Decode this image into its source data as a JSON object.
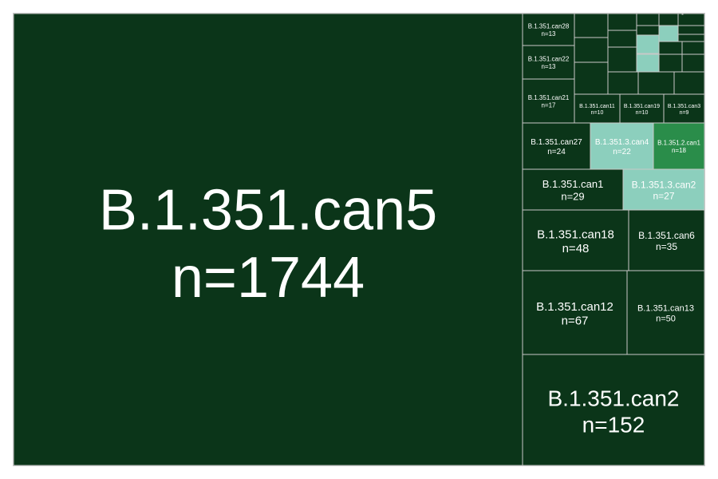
{
  "chart_data": {
    "type": "treemap",
    "colors": {
      "dark": "#0b3519",
      "mid": "#2a8d4a",
      "light": "#8ccfbd",
      "border": "#c8c8c8"
    },
    "tiles": [
      {
        "name": "B.1.351.can5",
        "n": 1744,
        "color": "dark"
      },
      {
        "name": "B.1.351.can2",
        "n": 152,
        "color": "dark"
      },
      {
        "name": "B.1.351.can12",
        "n": 67,
        "color": "dark"
      },
      {
        "name": "B.1.351.can13",
        "n": 50,
        "color": "dark"
      },
      {
        "name": "B.1.351.can18",
        "n": 48,
        "color": "dark"
      },
      {
        "name": "B.1.351.can6",
        "n": 35,
        "color": "dark"
      },
      {
        "name": "B.1.351.can1",
        "n": 29,
        "color": "dark"
      },
      {
        "name": "B.1.351.3.can2",
        "n": 27,
        "color": "light"
      },
      {
        "name": "B.1.351.can27",
        "n": 24,
        "color": "dark"
      },
      {
        "name": "B.1.351.3.can4",
        "n": 22,
        "color": "light"
      },
      {
        "name": "B.1.351.2.can1",
        "n": 18,
        "color": "mid"
      },
      {
        "name": "B.1.351.can21",
        "n": 17,
        "color": "dark"
      },
      {
        "name": "B.1.351.can22",
        "n": 13,
        "color": "dark"
      },
      {
        "name": "B.1.351.can28",
        "n": 13,
        "color": "dark"
      },
      {
        "name": "B.1.351.can11",
        "n": 10,
        "color": "dark"
      },
      {
        "name": "B.1.351.can19",
        "n": 10,
        "color": "dark"
      },
      {
        "name": "B.1.351.can3",
        "n": 9,
        "color": "dark"
      }
    ],
    "unlabeled_tiles": [
      {
        "color": "dark"
      },
      {
        "color": "dark"
      },
      {
        "color": "dark"
      },
      {
        "color": "dark"
      },
      {
        "color": "dark"
      },
      {
        "color": "dark"
      },
      {
        "color": "dark"
      },
      {
        "color": "dark"
      },
      {
        "color": "dark"
      },
      {
        "color": "dark"
      },
      {
        "color": "dark"
      },
      {
        "color": "light"
      },
      {
        "color": "dark"
      },
      {
        "color": "dark"
      },
      {
        "color": "light"
      },
      {
        "color": "dark"
      },
      {
        "color": "dark"
      },
      {
        "color": "dark"
      },
      {
        "color": "light"
      },
      {
        "color": "dark"
      },
      {
        "color": "dark"
      },
      {
        "color": "dark"
      },
      {
        "color": "dark"
      },
      {
        "color": "dark"
      },
      {
        "color": "dark"
      }
    ]
  }
}
